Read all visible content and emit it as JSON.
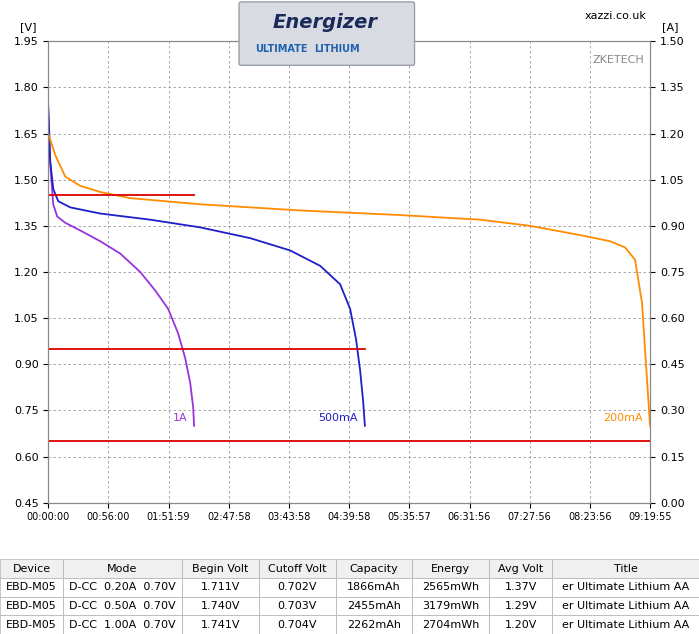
{
  "chart_data": {
    "type": "line",
    "y_label": "[V]",
    "y2_label": "[A]",
    "annotations": [
      "xazzi.co.uk",
      "ZKETECH"
    ],
    "logo": [
      "Energizer",
      "ULTIMATE",
      "LITHIUM"
    ],
    "grid": true,
    "xlim": [
      0,
      33595
    ],
    "xticks": [
      {
        "value": 0,
        "label": "00:00:00"
      },
      {
        "value": 3360,
        "label": "00:56:00"
      },
      {
        "value": 6719,
        "label": "01:51:59"
      },
      {
        "value": 10078,
        "label": "02:47:58"
      },
      {
        "value": 13438,
        "label": "03:43:58"
      },
      {
        "value": 16798,
        "label": "04:39:58"
      },
      {
        "value": 20157,
        "label": "05:35:57"
      },
      {
        "value": 23516,
        "label": "06:31:56"
      },
      {
        "value": 26876,
        "label": "07:27:56"
      },
      {
        "value": 30236,
        "label": "08:23:56"
      },
      {
        "value": 33595,
        "label": "09:19:55"
      }
    ],
    "ylim": [
      0.45,
      1.95
    ],
    "yticks": [
      0.45,
      {
        "value": 0.6,
        "label": "0.60"
      },
      0.75,
      {
        "value": 0.9,
        "label": "0.90"
      },
      1.05,
      {
        "value": 1.2,
        "label": "1.20"
      },
      1.35,
      {
        "value": 1.5,
        "label": "1.50"
      },
      1.65,
      {
        "value": 1.8,
        "label": "1.80"
      },
      1.95
    ],
    "y2lim": [
      0.0,
      1.5
    ],
    "y2ticks": [
      {
        "value": 0.0,
        "label": "0.00"
      },
      0.15,
      {
        "value": 0.3,
        "label": "0.30"
      },
      0.45,
      {
        "value": 0.6,
        "label": "0.60"
      },
      0.75,
      {
        "value": 0.9,
        "label": "0.90"
      },
      1.05,
      {
        "value": 1.2,
        "label": "1.20"
      },
      1.35,
      {
        "value": 1.5,
        "label": "1.50"
      }
    ],
    "series": [
      {
        "name": "1A",
        "color": "#9933dd",
        "x": [
          0,
          112,
          279,
          502,
          949,
          1786,
          2902,
          4018,
          5134,
          5971,
          6696,
          7254,
          7645,
          7924,
          8091,
          8143
        ],
        "values": [
          1.72,
          1.55,
          1.42,
          1.38,
          1.36,
          1.335,
          1.3,
          1.26,
          1.2,
          1.14,
          1.08,
          1.0,
          0.92,
          0.84,
          0.76,
          0.7
        ]
      },
      {
        "name": "500mA",
        "color": "#1f1fc8",
        "x": [
          0,
          112,
          279,
          558,
          1228,
          2902,
          5692,
          8482,
          11272,
          13504,
          15178,
          16294,
          16852,
          17186,
          17410,
          17578,
          17676
        ],
        "values": [
          1.74,
          1.56,
          1.47,
          1.43,
          1.41,
          1.39,
          1.37,
          1.345,
          1.31,
          1.27,
          1.22,
          1.16,
          1.08,
          0.98,
          0.88,
          0.78,
          0.7
        ]
      },
      {
        "name": "200mA",
        "color": "#ff8c00",
        "x": [
          0,
          391,
          949,
          1786,
          2902,
          4576,
          8482,
          11272,
          14062,
          19642,
          24106,
          26896,
          29686,
          31360,
          32197,
          32755,
          33145,
          33368,
          33595
        ],
        "values": [
          1.65,
          1.58,
          1.51,
          1.48,
          1.46,
          1.44,
          1.42,
          1.41,
          1.4,
          1.385,
          1.37,
          1.35,
          1.32,
          1.3,
          1.28,
          1.24,
          1.1,
          0.9,
          0.7
        ]
      },
      {
        "color": "#dd0000",
        "axis": "y2",
        "x": [
          0,
          0,
          8143
        ],
        "values": [
          0.0,
          1.0,
          1.0
        ]
      },
      {
        "color": "#dd0000",
        "axis": "y2",
        "x": [
          0,
          0,
          17676
        ],
        "values": [
          0.0,
          0.5,
          0.5
        ]
      },
      {
        "color": "#dd0000",
        "axis": "y2",
        "x": [
          0,
          0,
          33595
        ],
        "values": [
          0.0,
          0.2,
          0.2
        ]
      }
    ]
  },
  "table": {
    "columns": [
      "Device",
      "Mode",
      "Begin Volt",
      "Cutoff Volt",
      "Capacity",
      "Energy",
      "Avg Volt",
      "Title"
    ],
    "rows": [
      [
        "EBD-M05",
        "D-CC  0.20A  0.70V",
        "1.711V",
        "0.702V",
        "1866mAh",
        "2565mWh",
        "1.37V",
        "er Ultimate Lithium AA"
      ],
      [
        "EBD-M05",
        "D-CC  0.50A  0.70V",
        "1.740V",
        "0.703V",
        "2455mAh",
        "3179mWh",
        "1.29V",
        "er Ultimate Lithium AA"
      ],
      [
        "EBD-M05",
        "D-CC  1.00A  0.70V",
        "1.741V",
        "0.704V",
        "2262mAh",
        "2704mWh",
        "1.20V",
        "er Ultimate Lithium AA"
      ]
    ]
  }
}
